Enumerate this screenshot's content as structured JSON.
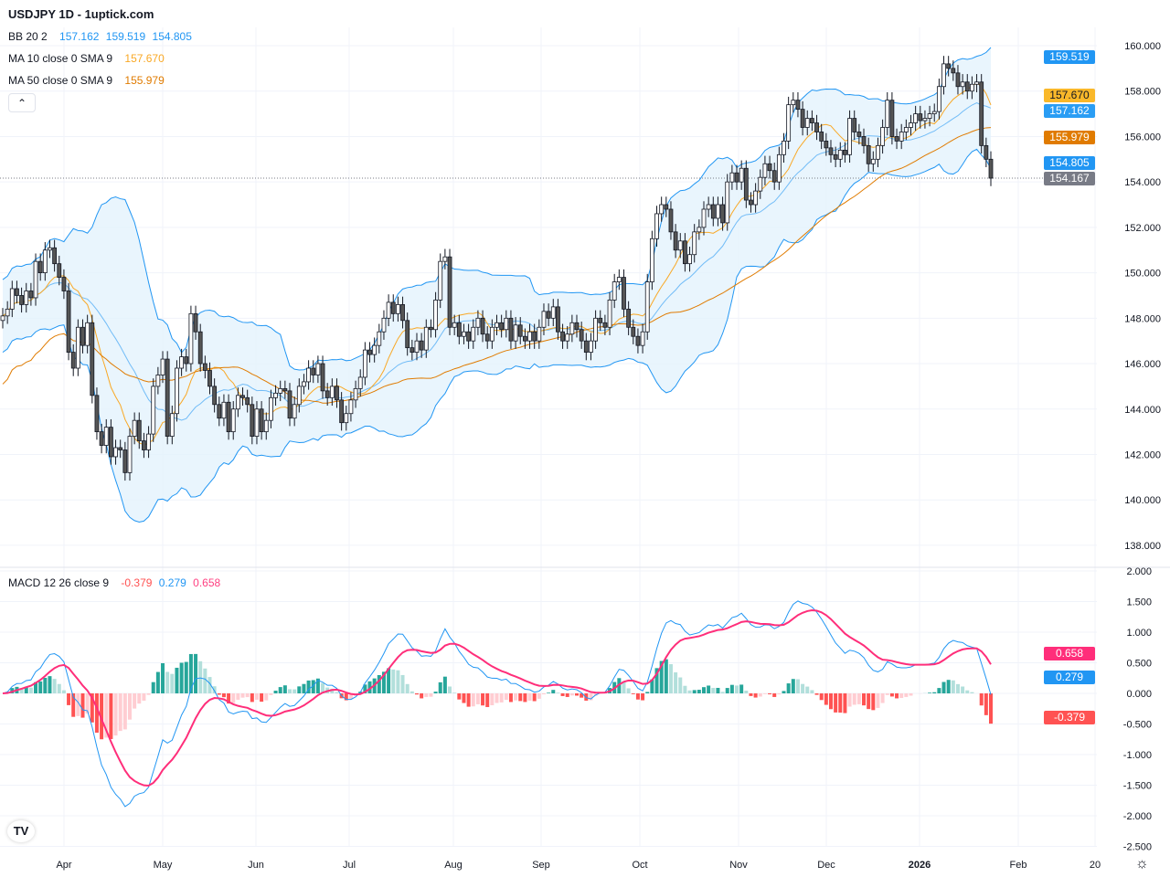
{
  "header": {
    "title": "USDJPY 1D - 1uptick.com"
  },
  "legend": {
    "bb": {
      "label": "BB 20 2",
      "basis": "157.162",
      "upper": "159.519",
      "lower": "154.805"
    },
    "ma10": {
      "label": "MA 10 close 0 SMA 9",
      "value": "157.670"
    },
    "ma50": {
      "label": "MA 50 close 0 SMA 9",
      "value": "155.979"
    },
    "macd": {
      "label": "MACD 12 26 close 9",
      "hist": "-0.379",
      "macd": "0.279",
      "signal": "0.658"
    },
    "collapse_icon": "chevron-up-icon"
  },
  "badges": {
    "upper": "159.519",
    "ma10": "157.670",
    "basis": "157.162",
    "ma50": "155.979",
    "lower": "154.805",
    "last": "154.167",
    "signal": "0.658",
    "macd": "0.279",
    "hist": "-0.379"
  },
  "colors": {
    "bb": "#2196f3",
    "bb_fill": "#e3f2fd",
    "ma10": "#f9a825",
    "ma50": "#e07b00",
    "macd": "#2196f3",
    "signal": "#ff2e7a",
    "hist_up": "#26a69a",
    "hist_up_light": "#b2dfdb",
    "hist_dn": "#ff5252",
    "hist_dn_light": "#ffcdd2",
    "last": "#787b86"
  },
  "chart_data": {
    "type": "candlestick",
    "symbol": "USDJPY",
    "interval": "1D",
    "price_axis": {
      "ticks": [
        "160.000",
        "158.000",
        "156.000",
        "154.000",
        "152.000",
        "150.000",
        "148.000",
        "146.000",
        "144.000",
        "142.000",
        "140.000",
        "138.000"
      ],
      "range": [
        138,
        160
      ]
    },
    "macd_axis": {
      "ticks": [
        "2.000",
        "1.500",
        "1.000",
        "0.500",
        "0.000",
        "-0.500",
        "-1.000",
        "-1.500",
        "-2.000",
        "-2.500"
      ],
      "range": [
        -2.5,
        2
      ]
    },
    "time_axis": [
      "Apr",
      "May",
      "Jun",
      "Jul",
      "Aug",
      "Sep",
      "Oct",
      "Nov",
      "Dec",
      "2026",
      "Feb",
      "20"
    ],
    "last_price": 154.167,
    "closes": [
      148.1,
      148.4,
      149.3,
      149.0,
      148.6,
      149.2,
      148.9,
      150.5,
      150.0,
      151.0,
      151.1,
      150.4,
      149.8,
      149.2,
      146.5,
      145.8,
      147.6,
      146.8,
      147.8,
      144.6,
      143.0,
      142.4,
      143.2,
      141.9,
      142.3,
      142.2,
      141.2,
      142.8,
      143.5,
      142.6,
      142.2,
      142.9,
      145.0,
      145.5,
      146.2,
      142.8,
      143.8,
      145.8,
      146.3,
      146.0,
      148.2,
      147.4,
      146.0,
      145.7,
      145.0,
      144.2,
      143.6,
      144.3,
      143.0,
      144.0,
      144.6,
      144.5,
      144.2,
      142.8,
      144.0,
      143.0,
      143.5,
      144.5,
      144.7,
      144.9,
      144.8,
      143.6,
      144.2,
      145.0,
      145.2,
      145.8,
      145.5,
      146.0,
      144.8,
      144.5,
      145.0,
      144.4,
      143.4,
      143.8,
      144.4,
      144.9,
      145.4,
      146.6,
      146.4,
      146.8,
      147.4,
      148.0,
      148.7,
      148.2,
      148.6,
      147.9,
      146.7,
      146.5,
      147.0,
      146.6,
      147.6,
      147.5,
      148.8,
      150.5,
      150.7,
      147.6,
      147.8,
      147.2,
      147.4,
      147.0,
      147.6,
      148.0,
      147.3,
      147.0,
      147.6,
      147.8,
      147.5,
      148.0,
      147.0,
      147.7,
      147.2,
      147.0,
      147.4,
      147.0,
      147.6,
      148.3,
      148.0,
      148.5,
      147.4,
      147.0,
      147.3,
      147.8,
      147.5,
      147.0,
      146.5,
      147.0,
      148.0,
      147.8,
      147.6,
      148.8,
      149.6,
      149.8,
      148.4,
      147.6,
      147.2,
      146.8,
      147.4,
      149.6,
      151.5,
      152.6,
      153.0,
      152.8,
      151.8,
      151.0,
      151.4,
      150.4,
      150.8,
      151.8,
      152.0,
      152.8,
      153.0,
      152.4,
      153.0,
      152.2,
      154.0,
      154.4,
      154.0,
      154.6,
      153.2,
      153.0,
      153.6,
      154.2,
      154.8,
      154.5,
      154.0,
      155.2,
      155.8,
      157.4,
      157.6,
      157.2,
      156.4,
      156.8,
      156.6,
      156.2,
      155.8,
      155.5,
      155.2,
      155.0,
      155.4,
      155.2,
      156.8,
      156.2,
      156.0,
      155.6,
      154.8,
      155.0,
      155.6,
      156.4,
      157.6,
      156.0,
      155.8,
      156.2,
      156.4,
      156.6,
      157.0,
      156.7,
      156.8,
      157.0,
      157.1,
      158.2,
      159.2,
      159.0,
      158.8,
      158.2,
      158.4,
      158.0,
      158.3,
      158.4,
      155.6,
      155.0,
      154.167
    ]
  }
}
